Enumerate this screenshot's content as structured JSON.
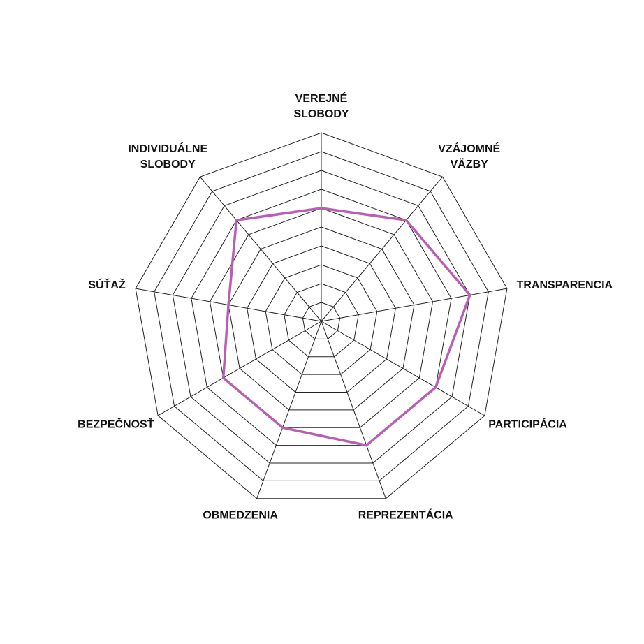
{
  "chart_data": {
    "type": "radar",
    "categories": [
      "VEREJNÉ SLOBODY",
      "VZÁJOMNÉ VÄZBY",
      "TRANSPARENCIA",
      "PARTICIPÁCIA",
      "REPREZENTÁCIA",
      "OBMEDZENIA",
      "BEZPEČNOSŤ",
      "SÚŤAŽ",
      "INDIVIDUÁLNE SLOBODY"
    ],
    "values": [
      6,
      7,
      8,
      7,
      7,
      6,
      6,
      5,
      7
    ],
    "color": "#b95fb3",
    "ylim": [
      0,
      10
    ],
    "yticks": [
      0,
      1,
      2,
      3,
      4,
      5,
      6,
      7,
      8,
      9,
      10
    ],
    "grid": true
  }
}
